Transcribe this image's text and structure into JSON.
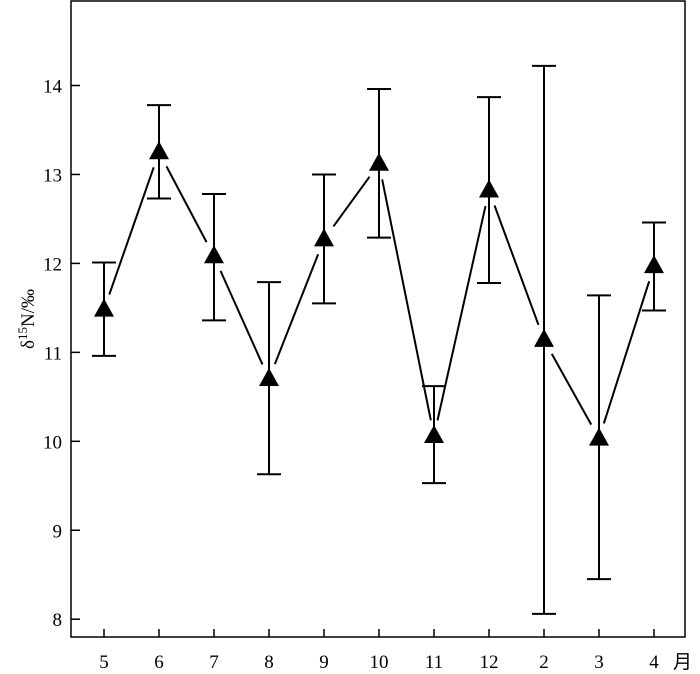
{
  "chart_data": {
    "type": "line",
    "title": "",
    "xlabel": "月",
    "ylabel": "δ15N/‰",
    "ylabel_parts": {
      "symbol": "δ",
      "superscript": "15",
      "rest": "N/‰"
    },
    "categories": [
      "5",
      "6",
      "7",
      "8",
      "9",
      "10",
      "11",
      "12",
      "2",
      "3",
      "4"
    ],
    "yticks": [
      "8",
      "9",
      "10",
      "11",
      "12",
      "13",
      "14"
    ],
    "ylim": [
      7.8,
      14.95
    ],
    "grid": false,
    "marker": "triangle",
    "series": [
      {
        "values": [
          11.48,
          13.25,
          12.08,
          10.7,
          12.27,
          13.12,
          10.06,
          12.82,
          11.14,
          10.03,
          11.97
        ],
        "err_low": [
          10.96,
          12.73,
          11.36,
          9.63,
          11.55,
          12.29,
          9.53,
          11.78,
          8.06,
          8.45,
          11.47
        ],
        "err_high": [
          12.01,
          13.78,
          12.78,
          11.79,
          13.0,
          13.96,
          10.62,
          13.87,
          14.22,
          11.64,
          12.46
        ]
      }
    ],
    "colors": {
      "line": "#000000",
      "marker": "#000000"
    }
  }
}
